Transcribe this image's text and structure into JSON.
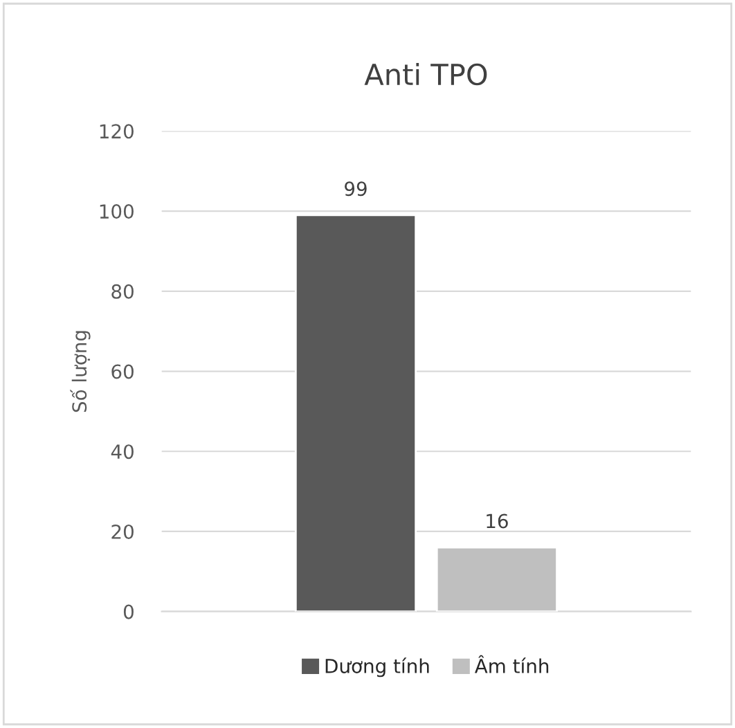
{
  "chart_data": {
    "type": "bar",
    "title": "Anti TPO",
    "ylabel": "Số lượng",
    "categories": [
      null
    ],
    "series": [
      {
        "name": "Dương tính",
        "color": "#595959",
        "values": [
          99
        ]
      },
      {
        "name": "Âm tính",
        "color": "#bfbfbf",
        "values": [
          16
        ]
      }
    ],
    "ylim": [
      0,
      120
    ],
    "yticks": [
      0,
      20,
      40,
      60,
      80,
      100,
      120
    ],
    "grid": "y",
    "legend": "bottom",
    "data_labels": true
  }
}
